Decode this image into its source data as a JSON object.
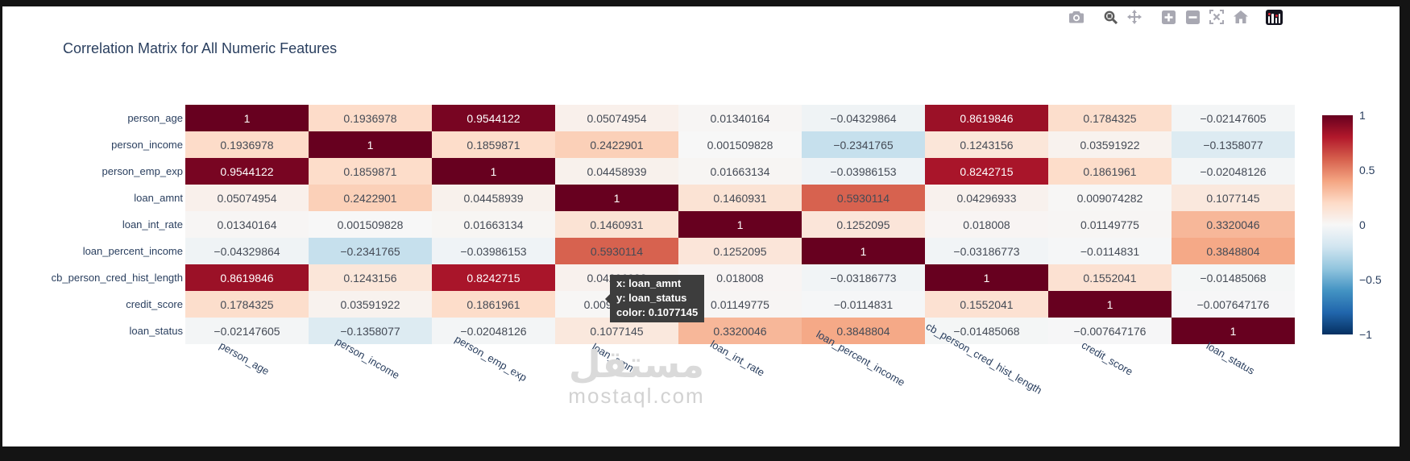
{
  "title": "Correlation Matrix for All Numeric Features",
  "toolbar": {
    "buttons": [
      "download-plot-as-png",
      "zoom",
      "pan",
      "zoom-in",
      "zoom-out",
      "autoscale",
      "reset-axes",
      "plotly-logo"
    ],
    "active_button": "zoom"
  },
  "chart_data": {
    "type": "heatmap",
    "title": "Correlation Matrix for All Numeric Features",
    "features": [
      "person_age",
      "person_income",
      "person_emp_exp",
      "loan_amnt",
      "loan_int_rate",
      "loan_percent_income",
      "cb_person_cred_hist_length",
      "credit_score",
      "loan_status"
    ],
    "matrix": [
      [
        1,
        0.1936978,
        0.9544122,
        0.05074954,
        0.01340164,
        -0.04329864,
        0.8619846,
        0.1784325,
        -0.02147605
      ],
      [
        0.1936978,
        1,
        0.1859871,
        0.2422901,
        0.001509828,
        -0.2341765,
        0.1243156,
        0.03591922,
        -0.1358077
      ],
      [
        0.9544122,
        0.1859871,
        1,
        0.04458939,
        0.01663134,
        -0.03986153,
        0.8242715,
        0.1861961,
        -0.02048126
      ],
      [
        0.05074954,
        0.2422901,
        0.04458939,
        1,
        0.1460931,
        0.5930114,
        0.04296933,
        0.009074282,
        0.1077145
      ],
      [
        0.01340164,
        0.001509828,
        0.01663134,
        0.1460931,
        1,
        0.1252095,
        0.018008,
        0.01149775,
        0.3320046
      ],
      [
        -0.04329864,
        -0.2341765,
        -0.03986153,
        0.5930114,
        0.1252095,
        1,
        -0.03186773,
        -0.0114831,
        0.3848804
      ],
      [
        0.8619846,
        0.1243156,
        0.8242715,
        0.04296933,
        0.018008,
        -0.03186773,
        1,
        0.1552041,
        -0.01485068
      ],
      [
        0.1784325,
        0.03591922,
        0.1861961,
        0.009074282,
        0.01149775,
        -0.0114831,
        0.1552041,
        1,
        -0.007647176
      ],
      [
        -0.02147605,
        -0.1358077,
        -0.02048126,
        0.1077145,
        0.3320046,
        0.3848804,
        -0.01485068,
        -0.007647176,
        1
      ]
    ],
    "colorscale_name": "RdBu_r",
    "colorscale": [
      {
        "v": 1.0,
        "c": "#67001f"
      },
      {
        "v": 0.8,
        "c": "#b2182b"
      },
      {
        "v": 0.6,
        "c": "#d6604d"
      },
      {
        "v": 0.4,
        "c": "#f4a582"
      },
      {
        "v": 0.2,
        "c": "#fddbc7"
      },
      {
        "v": 0.0,
        "c": "#f7f7f7"
      },
      {
        "v": -0.2,
        "c": "#d1e5f0"
      },
      {
        "v": -0.4,
        "c": "#92c5de"
      },
      {
        "v": -0.6,
        "c": "#4393c3"
      },
      {
        "v": -0.8,
        "c": "#2166ac"
      },
      {
        "v": -1.0,
        "c": "#053061"
      }
    ],
    "zmin": -1,
    "zmax": 1,
    "colorbar_tick_labels": [
      "1",
      "0.5",
      "0",
      "−0.5",
      "−1"
    ],
    "legend_position": "right",
    "grid": false
  },
  "tooltip": {
    "line_x": "x: loan_amnt",
    "line_y": "y: loan_status",
    "line_color": "color: 0.1077145"
  },
  "watermark": {
    "arabic": "مستقل",
    "domain": "mostaql.com"
  },
  "theme": {
    "title_color": "#2a3f5f",
    "tick_color": "#2a3f5f",
    "tooltip_bg": "#3d3d3d",
    "frame_color": "#141414"
  }
}
